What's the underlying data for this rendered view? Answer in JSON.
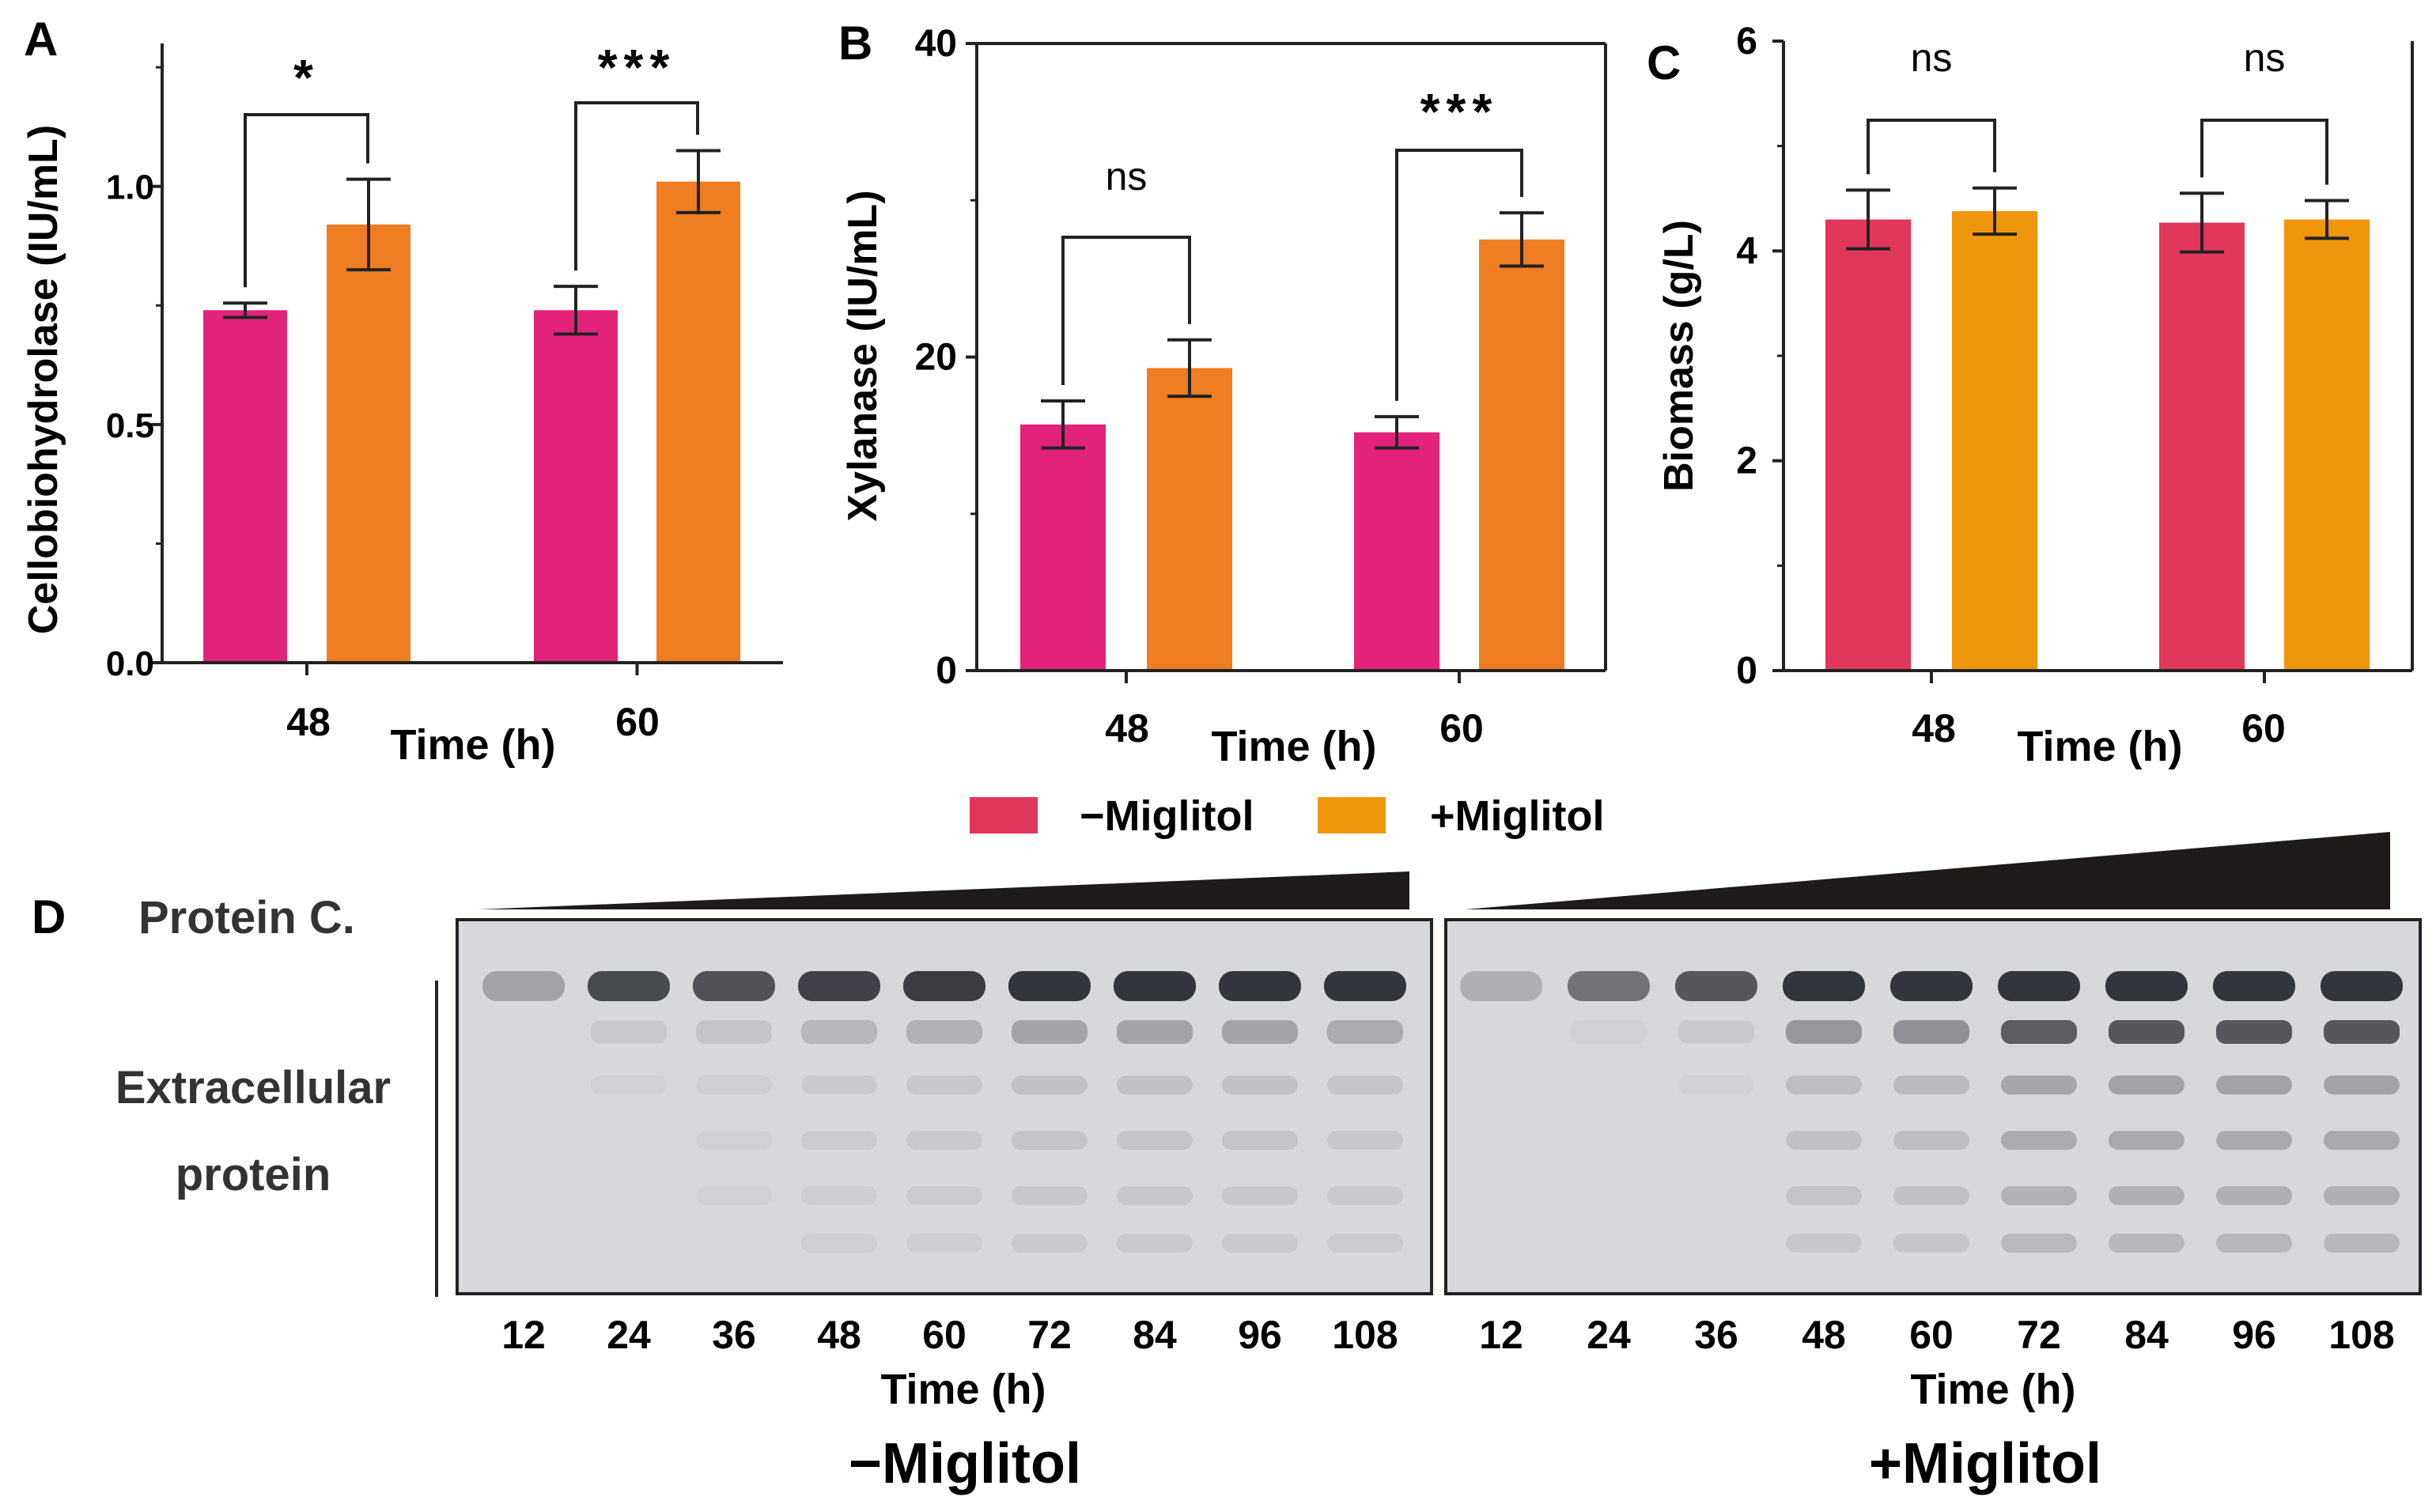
{
  "colors": {
    "minus_A": "#e3237a",
    "plus_A": "#ef7d21",
    "minus_C": "#e0375a",
    "plus_C": "#f0960d",
    "axis": "#222222",
    "gel_bg": "#d7d8dc",
    "band": "#2a2c33"
  },
  "legend": {
    "minus_label": "−Miglitol",
    "plus_label": "+Miglitol"
  },
  "chart_data": [
    {
      "panel": "A",
      "type": "bar",
      "ylabel": "Cellobiohydrolase (IU/mL)",
      "xlabel": "Time (h)",
      "categories": [
        "48",
        "60"
      ],
      "ylim": [
        0,
        1.3
      ],
      "yticks": [
        "0.0",
        "0.5",
        "1.0"
      ],
      "yticks_values": [
        0.0,
        0.5,
        1.0
      ],
      "series": [
        {
          "name": "−Miglitol",
          "values": [
            0.74,
            0.74
          ],
          "errors": [
            0.015,
            0.05
          ]
        },
        {
          "name": "+Miglitol",
          "values": [
            0.92,
            1.01
          ],
          "errors": [
            0.095,
            0.065
          ]
        }
      ],
      "significance": [
        "*",
        "***"
      ]
    },
    {
      "panel": "B",
      "type": "bar",
      "ylabel": "Xylanase (IU/mL)",
      "xlabel": "Time (h)",
      "categories": [
        "48",
        "60"
      ],
      "ylim": [
        0,
        40
      ],
      "yticks": [
        "0",
        "20",
        "40"
      ],
      "yticks_values": [
        0,
        20,
        40
      ],
      "series": [
        {
          "name": "−Miglitol",
          "values": [
            15.7,
            15.2
          ],
          "errors": [
            1.5,
            1.0
          ]
        },
        {
          "name": "+Miglitol",
          "values": [
            19.3,
            27.5
          ],
          "errors": [
            1.8,
            1.7
          ]
        }
      ],
      "significance": [
        "ns",
        "***"
      ]
    },
    {
      "panel": "C",
      "type": "bar",
      "ylabel": "Biomass (g/L)",
      "xlabel": "Time (h)",
      "categories": [
        "48",
        "60"
      ],
      "ylim": [
        0,
        6
      ],
      "yticks": [
        "0",
        "2",
        "4",
        "6"
      ],
      "yticks_values": [
        0,
        2,
        4,
        6
      ],
      "series": [
        {
          "name": "−Miglitol",
          "values": [
            4.3,
            4.27
          ],
          "errors": [
            0.28,
            0.28
          ]
        },
        {
          "name": "+Miglitol",
          "values": [
            4.38,
            4.3
          ],
          "errors": [
            0.22,
            0.18
          ]
        }
      ],
      "significance": [
        "ns",
        "ns"
      ]
    }
  ],
  "gel": {
    "panel": "D",
    "protein_label": "Protein C.",
    "side_label_line1": "Extracellular",
    "side_label_line2": "protein",
    "lanes": [
      "12",
      "24",
      "36",
      "48",
      "60",
      "72",
      "84",
      "96",
      "108"
    ],
    "time_label": "Time (h)",
    "groups": [
      {
        "label": "−Miglitol",
        "band_intensity": [
          0.2,
          0.85,
          0.8,
          0.9,
          0.95,
          1.0,
          1.0,
          1.0,
          1.0
        ],
        "extra_bands": [
          0.0,
          0.1,
          0.15,
          0.25,
          0.3,
          0.4,
          0.4,
          0.4,
          0.35
        ]
      },
      {
        "label": "+Miglitol",
        "band_intensity": [
          0.1,
          0.55,
          0.75,
          1.0,
          1.0,
          1.0,
          1.0,
          1.0,
          1.0
        ],
        "extra_bands": [
          0.0,
          0.05,
          0.1,
          0.5,
          0.55,
          0.95,
          1.0,
          1.0,
          1.0
        ]
      }
    ]
  }
}
